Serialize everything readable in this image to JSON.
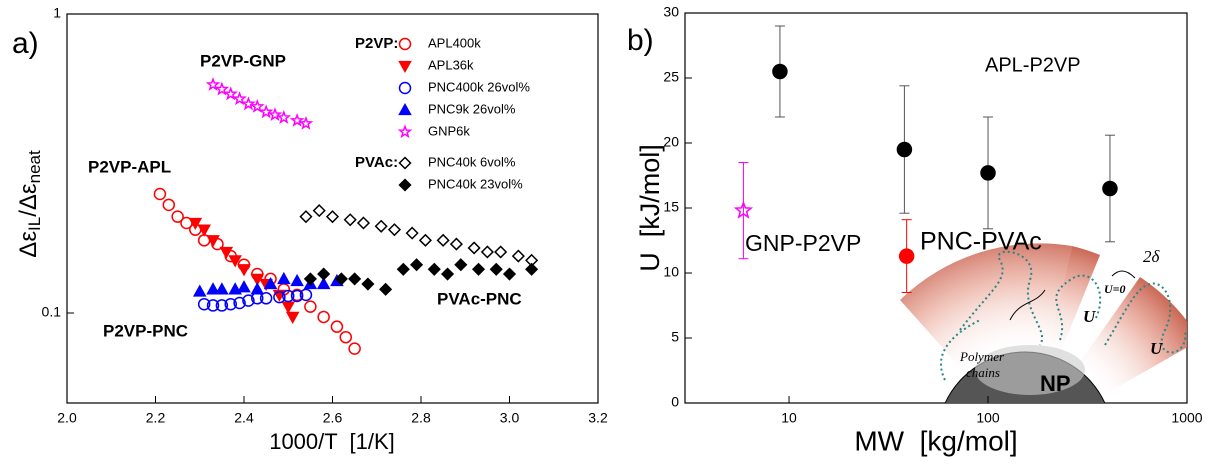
{
  "chart_data": [
    {
      "type": "scatter",
      "panel_label": "a)",
      "xlabel": "1000/T  [1/K]",
      "ylabel": [
        "Δε",
        "IL",
        "/Δε",
        "neat"
      ],
      "log_y": true,
      "xlim": [
        2.0,
        3.2
      ],
      "ylim": [
        0.05,
        1
      ],
      "xticks": [
        {
          "value": 2.0,
          "label": "2.0"
        },
        2.2,
        2.4,
        2.6,
        2.8,
        {
          "value": 3.0,
          "label": "3.0"
        },
        3.2
      ],
      "yticks": [
        0.1,
        1
      ],
      "legend": "upper right",
      "annotations": [
        {
          "text": "P2VP-GNP",
          "color": "#ff00ff"
        },
        {
          "text": "P2VP-APL",
          "color": "#ff0000"
        },
        {
          "text": "P2VP-PNC",
          "color": "#0000ff"
        },
        {
          "text": "PVAc-PNC",
          "color": "#000000"
        }
      ],
      "series_groups": [
        {
          "name": "P2VP:",
          "series": [
            {
              "name": "APL400k",
              "color": "#ff0000",
              "marker": "circle-open",
              "x": [
                2.21,
                2.23,
                2.25,
                2.27,
                2.29,
                2.31,
                2.34,
                2.37,
                2.4,
                2.43,
                2.46,
                2.49,
                2.52,
                2.55,
                2.58,
                2.61,
                2.63,
                2.65
              ],
              "values": [
                0.25,
                0.23,
                0.21,
                0.2,
                0.19,
                0.175,
                0.17,
                0.155,
                0.145,
                0.135,
                0.13,
                0.12,
                0.115,
                0.105,
                0.097,
                0.09,
                0.083,
                0.076
              ]
            },
            {
              "name": "APL36k",
              "color": "#ff0000",
              "marker": "triangle-down",
              "x": [
                2.29,
                2.31,
                2.33,
                2.36,
                2.38,
                2.4,
                2.43,
                2.45,
                2.48,
                2.5,
                2.51
              ],
              "values": [
                0.2,
                0.19,
                0.175,
                0.16,
                0.15,
                0.14,
                0.13,
                0.125,
                0.115,
                0.105,
                0.097
              ]
            },
            {
              "name": "PNC400k 26vol%",
              "color": "#0000ff",
              "marker": "circle-open",
              "x": [
                2.31,
                2.33,
                2.35,
                2.37,
                2.39,
                2.41,
                2.43,
                2.45,
                2.48,
                2.5,
                2.52,
                2.54
              ],
              "values": [
                0.107,
                0.106,
                0.106,
                0.107,
                0.108,
                0.11,
                0.112,
                0.112,
                0.113,
                0.114,
                0.114,
                0.115
              ]
            },
            {
              "name": "PNC9k 26vol%",
              "color": "#0000ff",
              "marker": "triangle-up",
              "x": [
                2.3,
                2.33,
                2.35,
                2.38,
                2.4,
                2.43,
                2.46,
                2.49,
                2.52,
                2.55,
                2.58,
                2.61
              ],
              "values": [
                0.118,
                0.12,
                0.12,
                0.12,
                0.122,
                0.12,
                0.125,
                0.13,
                0.128,
                0.125,
                0.125,
                0.128
              ]
            },
            {
              "name": "GNP6k",
              "color": "#ff00ff",
              "marker": "star",
              "x": [
                2.33,
                2.35,
                2.37,
                2.39,
                2.41,
                2.43,
                2.45,
                2.47,
                2.49,
                2.52,
                2.54
              ],
              "values": [
                0.58,
                0.56,
                0.54,
                0.52,
                0.5,
                0.49,
                0.47,
                0.46,
                0.45,
                0.44,
                0.43
              ]
            }
          ]
        },
        {
          "name": "PVAc:",
          "series": [
            {
              "name": "PNC40k 6vol%",
              "color": "#000000",
              "marker": "diamond-open",
              "x": [
                2.54,
                2.57,
                2.6,
                2.64,
                2.67,
                2.71,
                2.74,
                2.78,
                2.81,
                2.85,
                2.88,
                2.92,
                2.95,
                2.98,
                3.02,
                3.05
              ],
              "values": [
                0.21,
                0.22,
                0.21,
                0.205,
                0.2,
                0.195,
                0.19,
                0.185,
                0.175,
                0.175,
                0.17,
                0.165,
                0.16,
                0.16,
                0.155,
                0.15
              ]
            },
            {
              "name": "PNC40k 23vol%",
              "color": "#000000",
              "marker": "diamond",
              "x": [
                2.55,
                2.58,
                2.62,
                2.65,
                2.68,
                2.72,
                2.76,
                2.79,
                2.83,
                2.86,
                2.89,
                2.93,
                2.97,
                3.0,
                3.05
              ],
              "values": [
                0.13,
                0.135,
                0.13,
                0.13,
                0.125,
                0.12,
                0.14,
                0.145,
                0.14,
                0.135,
                0.145,
                0.14,
                0.14,
                0.135,
                0.14
              ]
            }
          ]
        }
      ]
    },
    {
      "type": "errorbar",
      "panel_label": "b)",
      "xlabel": "MW  [kg/mol]",
      "ylabel": "U  [kJ/mol]",
      "log_x": true,
      "xlim": [
        3,
        1000
      ],
      "ylim": [
        0,
        30
      ],
      "xticks": [
        10,
        100,
        1000
      ],
      "yticks": [
        0,
        5,
        10,
        15,
        20,
        25,
        30
      ],
      "series": [
        {
          "name": "APL-P2VP",
          "color": "#000000",
          "marker": "circle",
          "x": [
            9,
            38,
            100,
            410
          ],
          "values": [
            25.5,
            19.5,
            17.7,
            16.5
          ],
          "errors": [
            3.5,
            4.9,
            4.3,
            4.1
          ]
        },
        {
          "name": "GNP-P2VP",
          "color": "#ff00ff",
          "marker": "star",
          "x": [
            5.9
          ],
          "values": [
            14.8
          ],
          "errors": [
            3.7
          ]
        },
        {
          "name": "PNC-PVAc",
          "color": "#ff0000",
          "marker": "circle",
          "x": [
            39
          ],
          "values": [
            11.3
          ],
          "errors": [
            2.8
          ]
        }
      ],
      "inset": {
        "np": "NP",
        "chains": [
          "Polymer",
          "chains"
        ],
        "gap": "2δ",
        "zero": "U=0",
        "potential": [
          "U",
          "U"
        ]
      }
    }
  ]
}
